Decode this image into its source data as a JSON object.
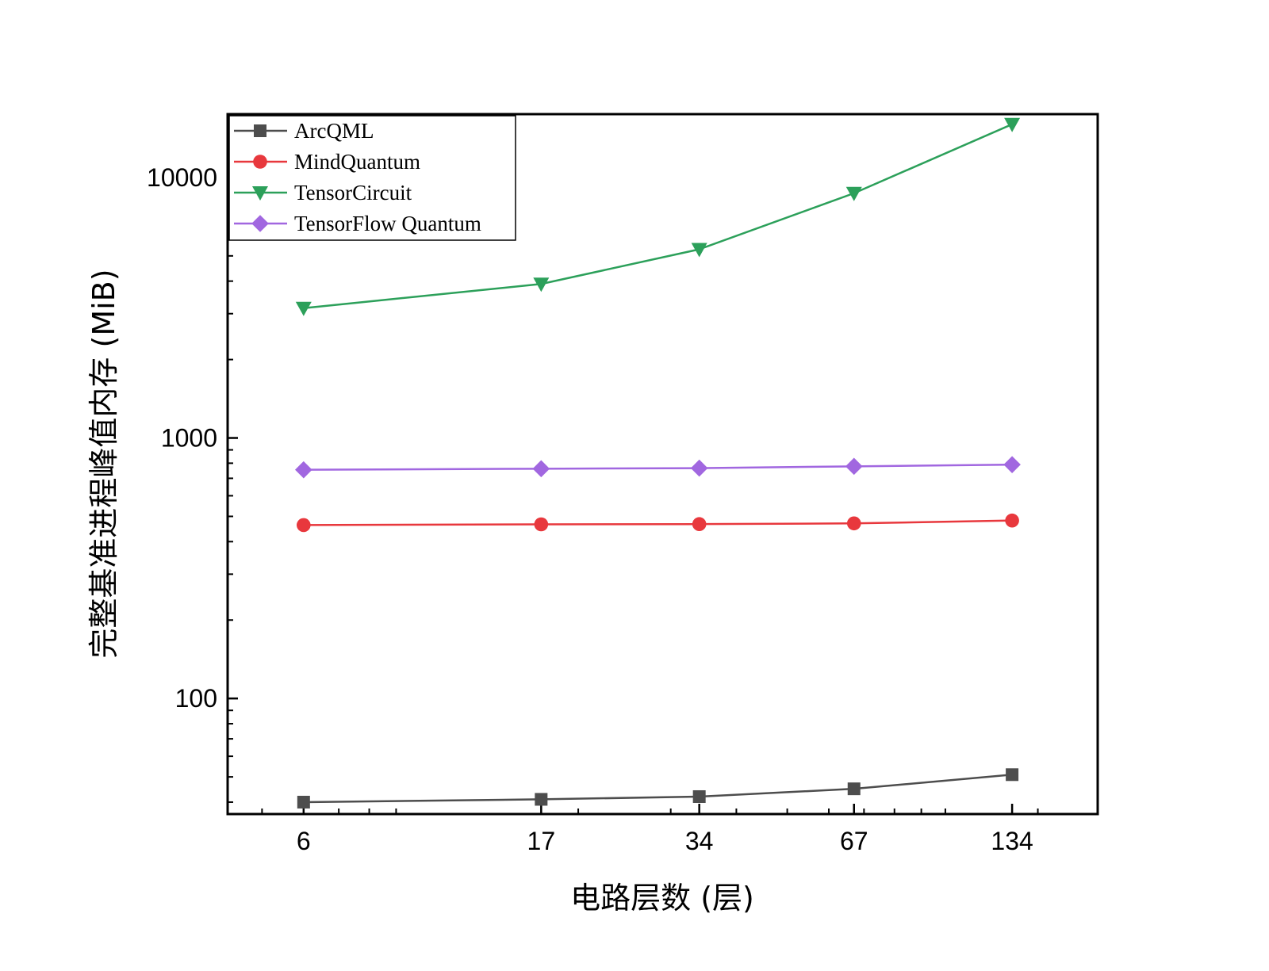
{
  "chart_data": {
    "type": "line",
    "title": "",
    "xlabel": "电路层数 (层)",
    "ylabel": "完整基准进程峰值内存 (MiB)",
    "x_scale": "log",
    "y_scale": "log",
    "x": [
      6,
      17,
      34,
      67,
      134
    ],
    "x_tick_labels": [
      "6",
      "17",
      "34",
      "67",
      "134"
    ],
    "xlim": [
      4.3,
      195
    ],
    "ylim": [
      36,
      17500
    ],
    "y_ticks": [
      100,
      1000,
      10000
    ],
    "y_tick_labels": [
      "100",
      "1000",
      "10000"
    ],
    "grid": false,
    "legend_position": "top-left",
    "series": [
      {
        "name": "ArcQML",
        "marker": "square",
        "color": "#4d4d4d",
        "values": [
          40,
          41,
          42,
          45,
          51
        ]
      },
      {
        "name": "MindQuantum",
        "marker": "circle",
        "color": "#e8383d",
        "values": [
          463,
          466,
          467,
          470,
          482
        ]
      },
      {
        "name": "TensorCircuit",
        "marker": "triangle-down",
        "color": "#2ca05a",
        "values": [
          3150,
          3900,
          5300,
          8700,
          16000
        ]
      },
      {
        "name": "TensorFlow Quantum",
        "marker": "diamond",
        "color": "#a167e0",
        "values": [
          755,
          762,
          766,
          778,
          790
        ]
      }
    ]
  }
}
